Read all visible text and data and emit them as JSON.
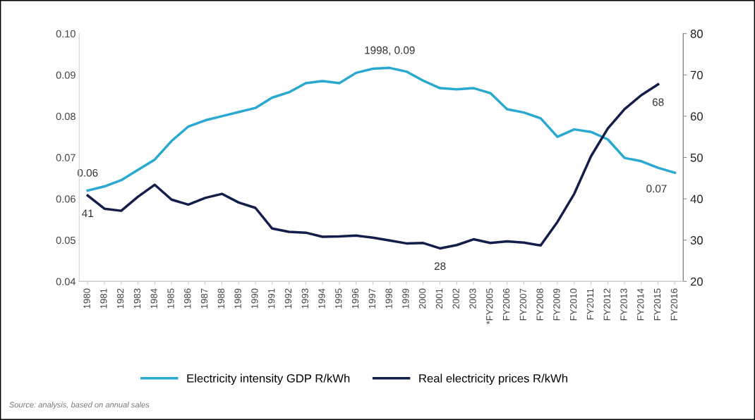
{
  "chart_data": {
    "type": "line",
    "categories": [
      "1980",
      "1981",
      "1982",
      "1983",
      "1984",
      "1985",
      "1986",
      "1987",
      "1988",
      "1989",
      "1990",
      "1991",
      "1992",
      "1993",
      "1994",
      "1995",
      "1996",
      "1997",
      "1998",
      "1999",
      "2000",
      "2001",
      "2002",
      "2003",
      "*FY2005",
      "FY2006",
      "FY2007",
      "FY2008",
      "FY2009",
      "FY2010",
      "FY2011",
      "FY2012",
      "FY2013",
      "FY2014",
      "FY2015",
      "FY2016"
    ],
    "series": [
      {
        "name": "Electricity intensity GDP R/kWh",
        "color": "#29a8d0",
        "values": [
          0.062,
          0.063,
          0.0645,
          0.067,
          0.0695,
          0.074,
          0.0775,
          0.079,
          0.08,
          0.081,
          0.082,
          0.0845,
          0.0858,
          0.088,
          0.0885,
          0.088,
          0.0905,
          0.0915,
          0.0917,
          0.0908,
          0.0886,
          0.0868,
          0.0865,
          0.0868,
          0.0856,
          0.0817,
          0.0809,
          0.0795,
          0.075,
          0.0768,
          0.0762,
          0.0744,
          0.0699,
          0.0691,
          0.0675,
          0.0663
        ],
        "value_labels": [
          "0.06",
          null,
          null,
          null,
          null,
          null,
          null,
          null,
          null,
          null,
          null,
          null,
          null,
          null,
          null,
          null,
          null,
          null,
          "1998, 0.09",
          null,
          null,
          null,
          null,
          null,
          null,
          null,
          null,
          null,
          null,
          null,
          null,
          null,
          null,
          null,
          null,
          "0.07"
        ]
      },
      {
        "name": "Real electricity prices R/kWh",
        "color": "#141e4a",
        "axis": "y2",
        "values": [
          40.8,
          37.6,
          37.1,
          40.5,
          43.4,
          39.8,
          38.6,
          40.2,
          41.2,
          39.1,
          37.8,
          32.8,
          32.0,
          31.8,
          30.8,
          30.9,
          31.1,
          30.6,
          29.9,
          29.2,
          29.3,
          28.0,
          28.8,
          30.2,
          29.3,
          29.7,
          29.4,
          28.7,
          34.4,
          41.2,
          50.3,
          57.0,
          61.7,
          65.1,
          67.7,
          null
        ],
        "value_labels": [
          "41",
          null,
          null,
          null,
          null,
          null,
          null,
          null,
          null,
          null,
          null,
          null,
          null,
          null,
          null,
          null,
          null,
          null,
          null,
          null,
          null,
          "28",
          null,
          null,
          null,
          null,
          null,
          null,
          null,
          null,
          null,
          null,
          null,
          null,
          "68",
          null
        ]
      }
    ],
    "ylim": [
      0.04,
      0.1
    ],
    "yticks": [
      0.04,
      0.05,
      0.06,
      0.07,
      0.08,
      0.09,
      {
        "value": 0.1,
        "label": "0.10"
      }
    ],
    "y2lim": [
      20,
      80
    ],
    "y2ticks": [
      20,
      30,
      40,
      50,
      60,
      70,
      80
    ],
    "grid": false,
    "legend": "bottom",
    "marker": "none",
    "line_style": "solid",
    "annotations": [
      "Source: analysis, based on annual sales"
    ]
  }
}
